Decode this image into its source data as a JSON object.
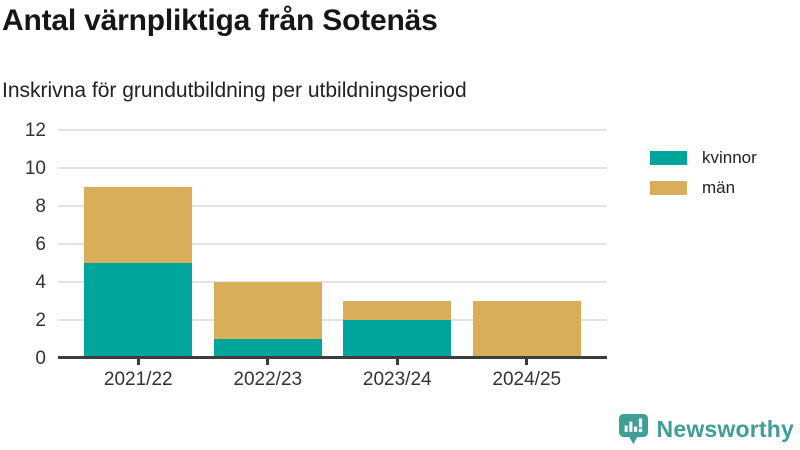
{
  "chart_data": {
    "type": "bar",
    "stacked": true,
    "title": "Antal värnpliktiga från Sotenäs",
    "subtitle": "Inskrivna för grundutbildning per utbildningsperiod",
    "categories": [
      "2021/22",
      "2022/23",
      "2023/24",
      "2024/25"
    ],
    "series": [
      {
        "name": "kvinnor",
        "color": "#00a59b",
        "values": [
          5,
          1,
          2,
          0
        ]
      },
      {
        "name": "män",
        "color": "#d9ae5a",
        "values": [
          4,
          3,
          1,
          3
        ]
      }
    ],
    "totals": [
      9,
      4,
      3,
      3
    ],
    "xlabel": "",
    "ylabel": "",
    "ylim": [
      0,
      12
    ],
    "yticks": [
      0,
      2,
      4,
      6,
      8,
      10,
      12
    ],
    "grid": true,
    "legend_position": "right"
  },
  "colors": {
    "kvinnor": "#00a59b",
    "man": "#d9ae5a",
    "grid": "#e2e2e2",
    "axis": "#3c3c3c",
    "logo_teal": "#3f9e98"
  },
  "footer": {
    "brand": "Newsworthy"
  }
}
